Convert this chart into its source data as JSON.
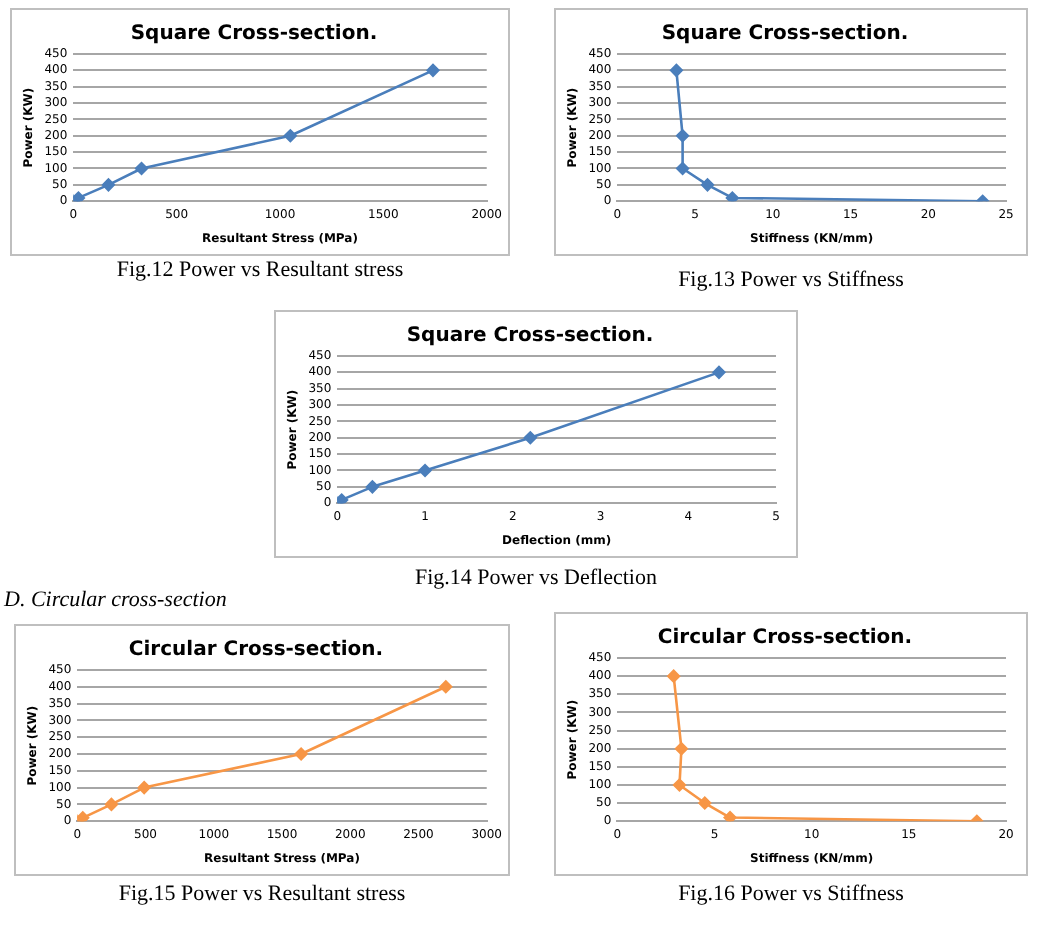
{
  "chart_data": [
    {
      "type": "line",
      "title": "Square Cross-section.",
      "xlabel": "Resultant Stress (MPa)",
      "ylabel": "Power (KW)",
      "xlim": [
        0,
        2000
      ],
      "xticks": [
        0,
        500,
        1000,
        1500,
        2000
      ],
      "ylim": [
        0,
        450
      ],
      "yticks": [
        0,
        50,
        100,
        150,
        200,
        250,
        300,
        350,
        400,
        450
      ],
      "grid": "y",
      "marker": "diamond",
      "legend": false,
      "series": [
        {
          "color": "#4a7ebb",
          "x": [
            0,
            25,
            170,
            330,
            1050,
            1740
          ],
          "values": [
            0,
            10,
            50,
            100,
            200,
            400
          ]
        }
      ],
      "annotations": [
        "Fig.12 Power vs Resultant stress"
      ]
    },
    {
      "type": "line",
      "title": "Square Cross-section.",
      "xlabel": "Stiffness (KN/mm)",
      "ylabel": "Power (KW)",
      "xlim": [
        0,
        25
      ],
      "xticks": [
        0,
        5,
        10,
        15,
        20,
        25
      ],
      "ylim": [
        0,
        450
      ],
      "yticks": [
        0,
        50,
        100,
        150,
        200,
        250,
        300,
        350,
        400,
        450
      ],
      "grid": "y",
      "marker": "diamond",
      "legend": false,
      "series": [
        {
          "color": "#4a7ebb",
          "x": [
            23.5,
            7.4,
            5.8,
            4.2,
            4.2,
            3.8
          ],
          "values": [
            0,
            10,
            50,
            100,
            200,
            400
          ]
        }
      ],
      "annotations": [
        "Fig.13  Power vs Stiffness"
      ]
    },
    {
      "type": "line",
      "title": "Square Cross-section.",
      "xlabel": "Deflection (mm)",
      "ylabel": "Power (KW)",
      "xlim": [
        0,
        5
      ],
      "xticks": [
        0,
        1,
        2,
        3,
        4,
        5
      ],
      "ylim": [
        0,
        450
      ],
      "yticks": [
        0,
        50,
        100,
        150,
        200,
        250,
        300,
        350,
        400,
        450
      ],
      "grid": "y",
      "marker": "diamond",
      "legend": false,
      "series": [
        {
          "color": "#4a7ebb",
          "x": [
            0,
            0.05,
            0.4,
            1,
            2.2,
            4.35
          ],
          "values": [
            0,
            10,
            50,
            100,
            200,
            400
          ]
        }
      ],
      "annotations": [
        "Fig.14 Power vs Deflection"
      ]
    },
    {
      "type": "line",
      "title": "Circular Cross-section.",
      "xlabel": "Resultant Stress (MPa)",
      "ylabel": "Power (KW)",
      "xlim": [
        0,
        3000
      ],
      "xticks": [
        0,
        500,
        1000,
        1500,
        2000,
        2500,
        3000
      ],
      "ylim": [
        0,
        450
      ],
      "yticks": [
        0,
        50,
        100,
        150,
        200,
        250,
        300,
        350,
        400,
        450
      ],
      "grid": "y",
      "marker": "diamond",
      "legend": false,
      "series": [
        {
          "color": "#f79646",
          "x": [
            0,
            40,
            250,
            490,
            1640,
            2700
          ],
          "values": [
            0,
            10,
            50,
            100,
            200,
            400
          ]
        }
      ],
      "annotations": [
        "D.   Circular cross-section",
        "Fig.15 Power vs Resultant stress"
      ]
    },
    {
      "type": "line",
      "title": "Circular Cross-section.",
      "xlabel": "Stiffness (KN/mm)",
      "ylabel": "Power (KW)",
      "xlim": [
        0,
        20
      ],
      "xticks": [
        0,
        5,
        10,
        15,
        20
      ],
      "ylim": [
        0,
        450
      ],
      "yticks": [
        0,
        50,
        100,
        150,
        200,
        250,
        300,
        350,
        400,
        450
      ],
      "grid": "y",
      "marker": "diamond",
      "legend": false,
      "series": [
        {
          "color": "#f79646",
          "x": [
            18.5,
            5.8,
            4.5,
            3.2,
            3.3,
            2.9
          ],
          "values": [
            0,
            10,
            50,
            100,
            200,
            400
          ]
        }
      ],
      "annotations": [
        "Fig.16 Power vs Stiffness"
      ]
    }
  ]
}
